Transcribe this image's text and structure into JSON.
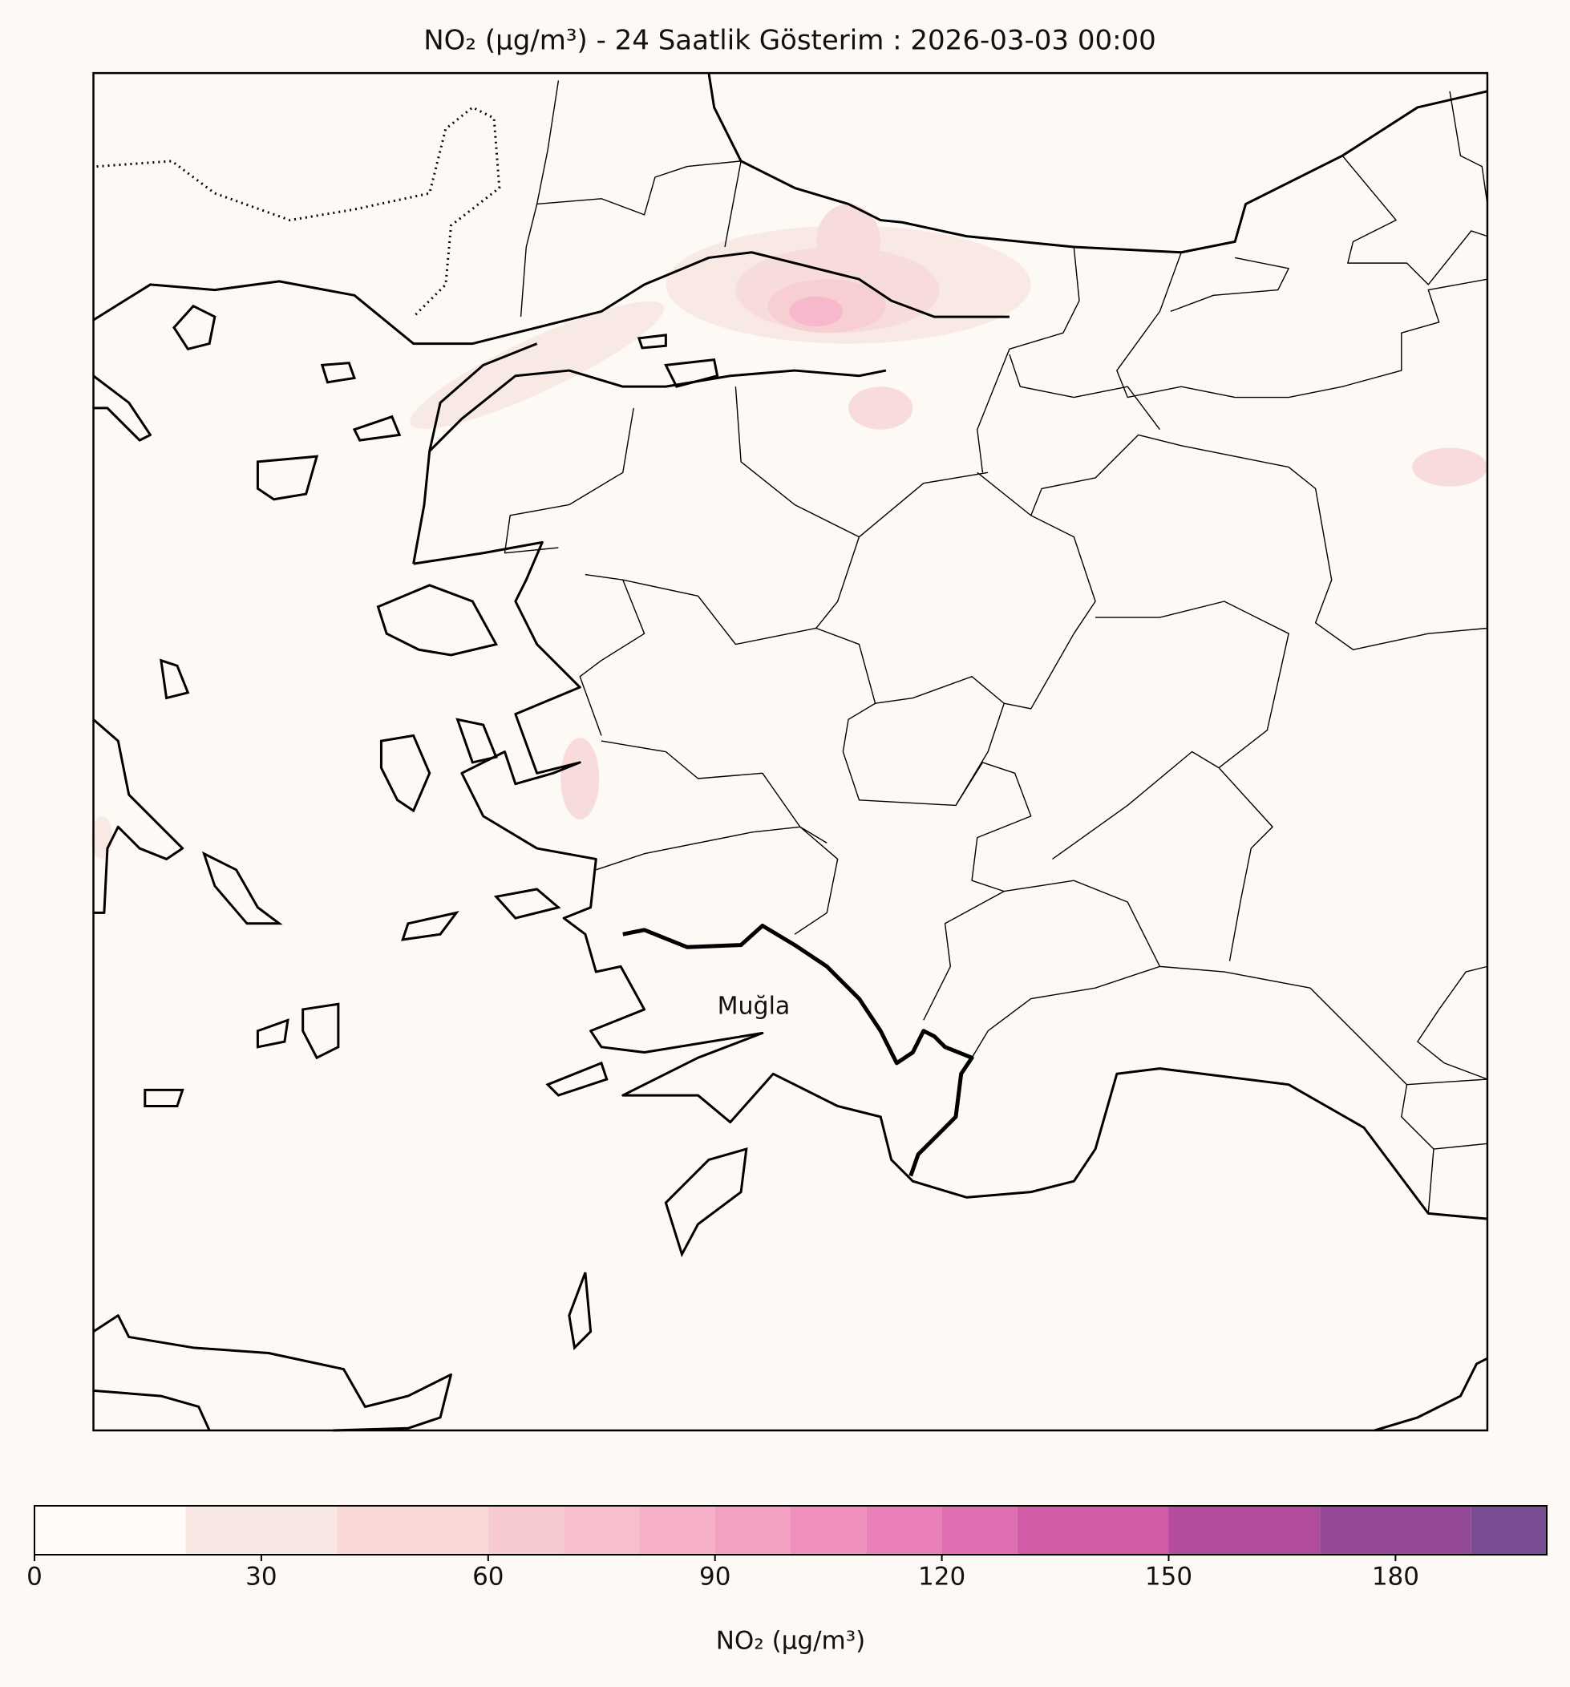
{
  "title": "NO₂ (µg/m³) - 24 Saatlik Gösterim : 2026-03-03 00:00",
  "map": {
    "place_labels": [
      "Muğla"
    ]
  },
  "colorbar": {
    "label": "NO₂ (µg/m³)",
    "lim": [
      0,
      200
    ],
    "bounds": [
      0,
      20,
      40,
      60,
      70,
      80,
      90,
      100,
      110,
      120,
      130,
      150,
      170,
      190,
      200
    ],
    "colors": [
      "#fefbf8",
      "#f9e7e4",
      "#f8d9d8",
      "#f7cad0",
      "#f7bfcc",
      "#f6b0c7",
      "#f3a0c3",
      "#f090be",
      "#ea80b8",
      "#e06fb1",
      "#d15ba6",
      "#b34c9e",
      "#944a96",
      "#7a4d92"
    ],
    "ticks": [
      0,
      30,
      60,
      90,
      120,
      150,
      180
    ]
  }
}
